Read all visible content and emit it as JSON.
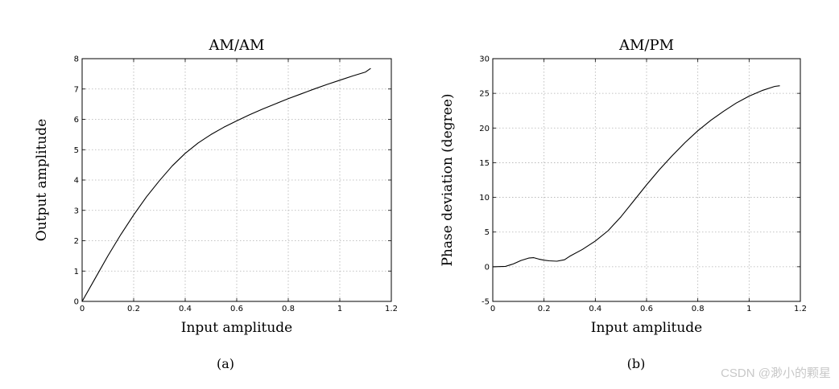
{
  "chart_data": [
    {
      "type": "line",
      "title": "AM/AM",
      "xlabel": "Input amplitude",
      "ylabel": "Output amplitude",
      "caption": "(a)",
      "xlim": [
        0,
        1.2
      ],
      "ylim": [
        0,
        8
      ],
      "xticks": [
        "0",
        "0.2",
        "0.4",
        "0.6",
        "0.8",
        "1",
        "1.2"
      ],
      "yticks": [
        "0",
        "1",
        "2",
        "3",
        "4",
        "5",
        "6",
        "7",
        "8"
      ],
      "grid": true,
      "x": [
        0,
        0.05,
        0.1,
        0.15,
        0.2,
        0.25,
        0.3,
        0.35,
        0.4,
        0.45,
        0.5,
        0.55,
        0.6,
        0.65,
        0.7,
        0.75,
        0.8,
        0.85,
        0.9,
        0.95,
        1.0,
        1.05,
        1.1,
        1.12
      ],
      "y": [
        0,
        0.75,
        1.5,
        2.2,
        2.85,
        3.45,
        3.98,
        4.47,
        4.88,
        5.22,
        5.5,
        5.74,
        5.95,
        6.15,
        6.34,
        6.51,
        6.68,
        6.84,
        7.0,
        7.15,
        7.29,
        7.43,
        7.56,
        7.68
      ]
    },
    {
      "type": "line",
      "title": "AM/PM",
      "xlabel": "Input amplitude",
      "ylabel": "Phase deviation (degree)",
      "caption": "(b)",
      "xlim": [
        0,
        1.2
      ],
      "ylim": [
        -5,
        30
      ],
      "xticks": [
        "0",
        "0.2",
        "0.4",
        "0.6",
        "0.8",
        "1",
        "1.2"
      ],
      "yticks": [
        "-5",
        "0",
        "5",
        "10",
        "15",
        "20",
        "25",
        "30"
      ],
      "grid": true,
      "x": [
        0,
        0.05,
        0.08,
        0.11,
        0.14,
        0.16,
        0.18,
        0.2,
        0.22,
        0.25,
        0.28,
        0.3,
        0.35,
        0.4,
        0.45,
        0.5,
        0.55,
        0.6,
        0.65,
        0.7,
        0.75,
        0.8,
        0.85,
        0.9,
        0.95,
        1.0,
        1.05,
        1.1,
        1.12
      ],
      "y": [
        0,
        0.05,
        0.4,
        0.9,
        1.25,
        1.3,
        1.1,
        0.95,
        0.85,
        0.8,
        1.0,
        1.5,
        2.5,
        3.7,
        5.2,
        7.2,
        9.5,
        11.8,
        14.0,
        16.0,
        17.9,
        19.6,
        21.1,
        22.4,
        23.6,
        24.6,
        25.4,
        26.0,
        26.1
      ]
    }
  ],
  "watermark": "CSDN @渺小的颗星"
}
